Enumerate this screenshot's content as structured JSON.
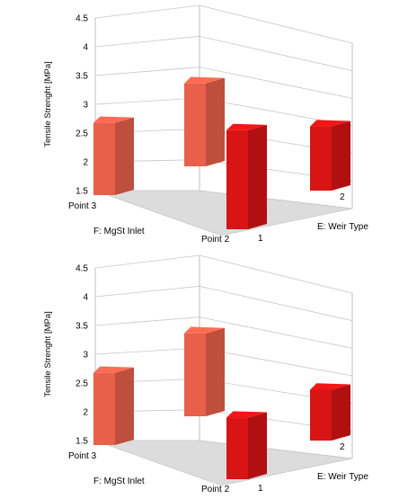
{
  "chart_data": [
    {
      "type": "bar",
      "ylabel": "Tensile Strenght [MPa]",
      "yticks": [
        "1.5",
        "2",
        "2.5",
        "3",
        "3.5",
        "4",
        "4.5"
      ],
      "ylim": [
        1.5,
        4.5
      ],
      "x_factor_label": "F: MgSt Inlet",
      "x_categories": [
        "Point 3",
        "Point 2"
      ],
      "z_factor_label": "E: Weir Type",
      "z_categories": [
        "1",
        "2"
      ],
      "grid": true,
      "bars": [
        {
          "x": "Point 3",
          "z": "2",
          "value": 2.85,
          "color": "#e8604a"
        },
        {
          "x": "Point 2",
          "z": "2",
          "value": 3.05,
          "color": "#e8604a"
        },
        {
          "x": "Point 3",
          "z": "1",
          "value": 2.7,
          "color": "#d81414"
        },
        {
          "x": "Point 2",
          "z": "1",
          "value": 3.35,
          "color": "#d81414"
        }
      ]
    },
    {
      "type": "bar",
      "ylabel": "Tensile Strenght [MPa]",
      "yticks": [
        "1.5",
        "2",
        "2.5",
        "3",
        "3.5",
        "4",
        "4.5"
      ],
      "ylim": [
        1.5,
        4.5
      ],
      "x_factor_label": "F: MgSt Inlet",
      "x_categories": [
        "Point 3",
        "Point 2"
      ],
      "z_factor_label": "E: Weir Type",
      "z_categories": [
        "1",
        "2"
      ],
      "grid": true,
      "bars": [
        {
          "x": "Point 3",
          "z": "2",
          "value": 2.85,
          "color": "#e8604a"
        },
        {
          "x": "Point 2",
          "z": "2",
          "value": 3.05,
          "color": "#e8604a"
        },
        {
          "x": "Point 3",
          "z": "1",
          "value": 2.45,
          "color": "#d81414"
        },
        {
          "x": "Point 2",
          "z": "1",
          "value": 2.65,
          "color": "#d81414"
        }
      ]
    }
  ]
}
